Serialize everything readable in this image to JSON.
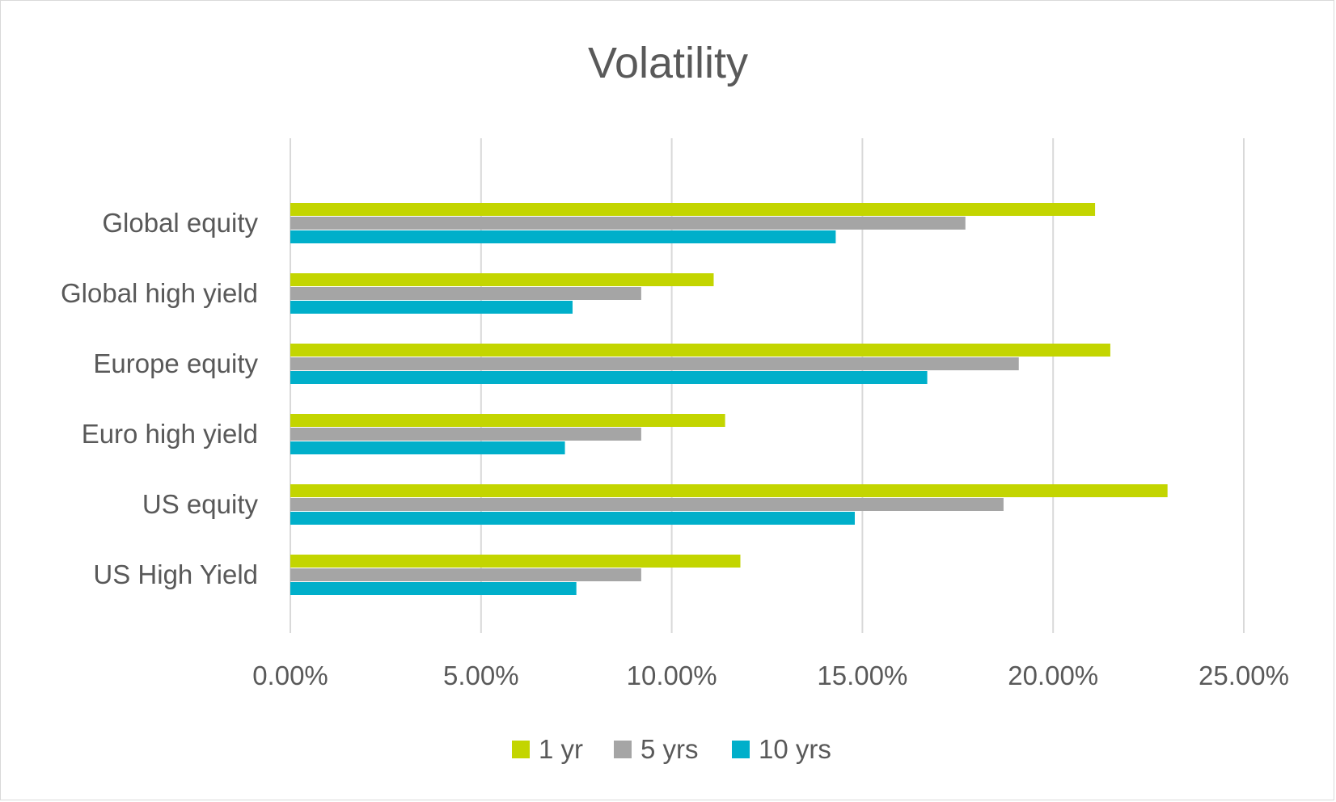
{
  "chart_data": {
    "type": "bar",
    "orientation": "horizontal",
    "title": "Volatility",
    "categories": [
      "Global equity",
      "Global high yield",
      "Europe equity",
      "Euro high yield",
      "US equity",
      "US High Yield"
    ],
    "series": [
      {
        "name": "1 yr",
        "color": "#c3d500",
        "values": [
          21.1,
          11.1,
          21.5,
          11.4,
          23.0,
          11.8
        ]
      },
      {
        "name": "5 yrs",
        "color": "#a5a5a5",
        "values": [
          17.7,
          9.2,
          19.1,
          9.2,
          18.7,
          9.2
        ]
      },
      {
        "name": "10 yrs",
        "color": "#00afca",
        "values": [
          14.3,
          7.4,
          16.7,
          7.2,
          14.8,
          7.5
        ]
      }
    ],
    "xlim": [
      0,
      25
    ],
    "x_ticks": [
      "0.00%",
      "5.00%",
      "10.00%",
      "15.00%",
      "20.00%",
      "25.00%"
    ],
    "grid": "vertical",
    "gridline_color": "#d9d9d9",
    "legend_position": "bottom"
  }
}
